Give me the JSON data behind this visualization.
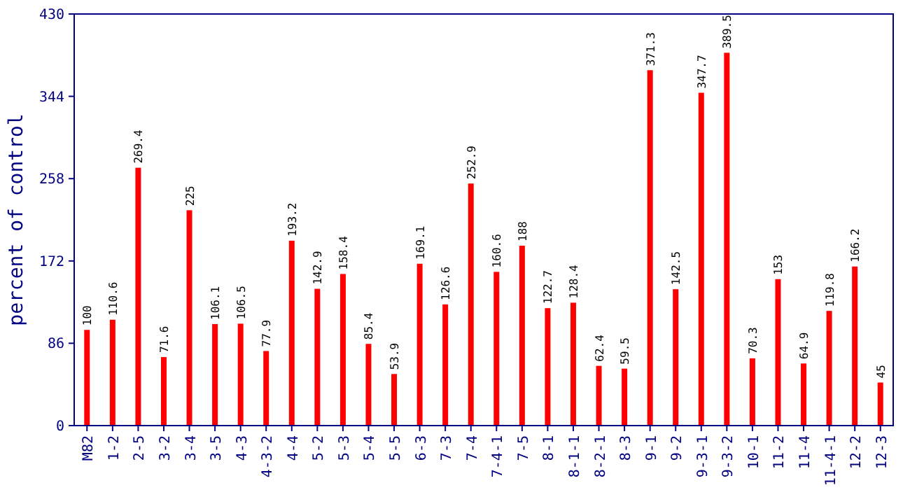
{
  "chart_data": {
    "type": "bar",
    "ylabel": "percent of control",
    "categories": [
      "M82",
      "1-2",
      "2-5",
      "3-2",
      "3-4",
      "3-5",
      "4-3",
      "4-3-2",
      "4-4",
      "5-2",
      "5-3",
      "5-4",
      "5-5",
      "6-3",
      "7-3",
      "7-4",
      "7-4-1",
      "7-5",
      "8-1",
      "8-1-1",
      "8-2-1",
      "8-3",
      "9-1",
      "9-2",
      "9-3-1",
      "9-3-2",
      "10-1",
      "11-2",
      "11-4",
      "11-4-1",
      "12-2",
      "12-3"
    ],
    "values": [
      100,
      110.6,
      269.4,
      71.6,
      225,
      106.1,
      106.5,
      77.9,
      193.2,
      142.9,
      158.4,
      85.4,
      53.9,
      169.1,
      126.6,
      252.9,
      160.6,
      188,
      122.7,
      128.4,
      62.4,
      59.5,
      371.3,
      142.5,
      347.7,
      389.5,
      70.3,
      153,
      64.9,
      119.8,
      166.2,
      45
    ],
    "color": "#ff0000",
    "ylim": [
      0,
      430
    ],
    "yticks": [
      0,
      86,
      172,
      258,
      344,
      430
    ],
    "data_labels": true
  }
}
